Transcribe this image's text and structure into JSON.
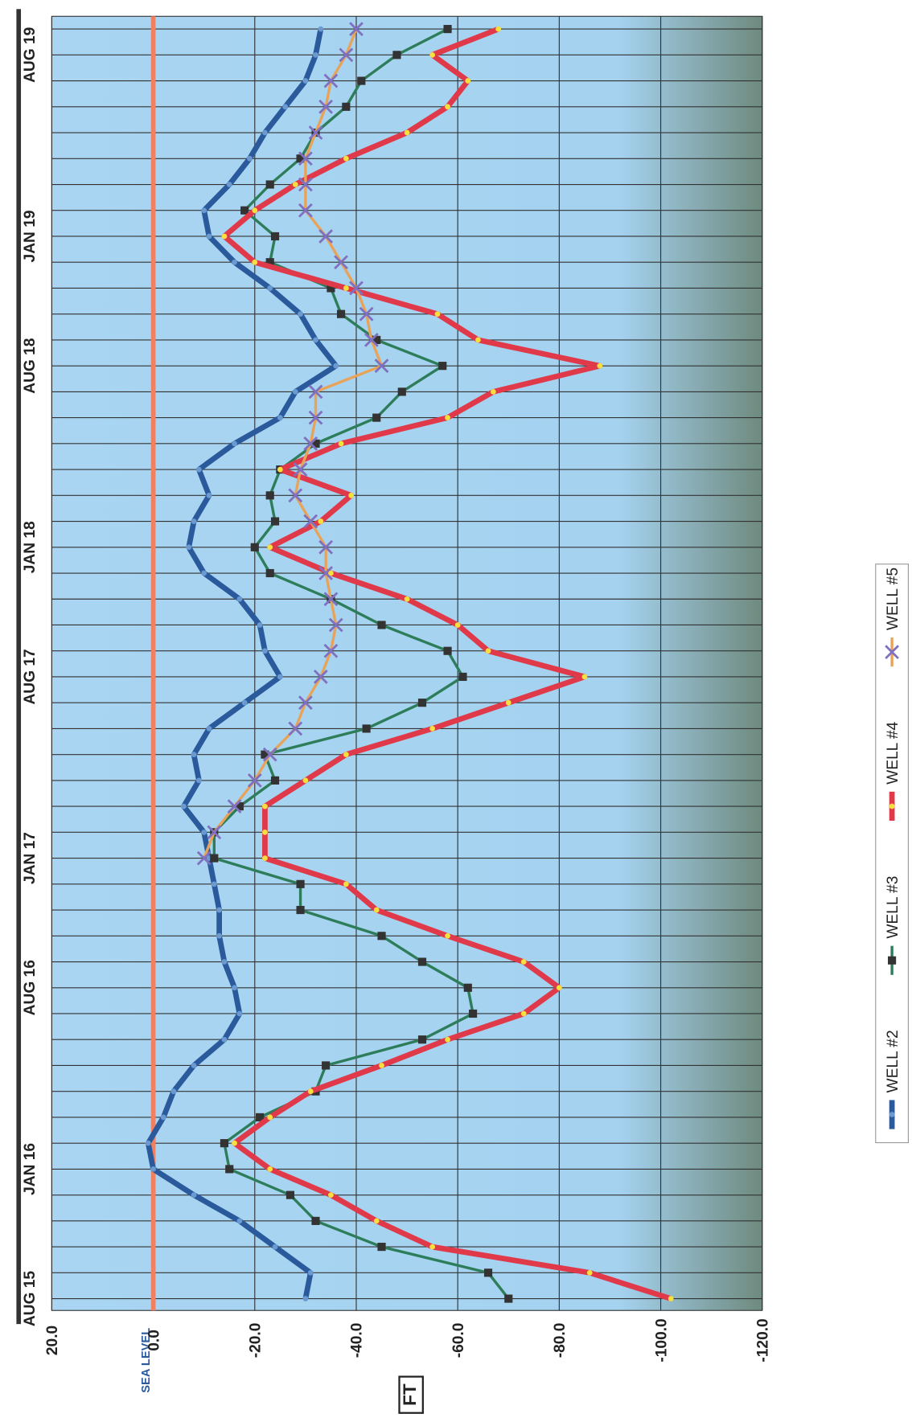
{
  "chart_data": {
    "type": "line",
    "ylabel": "FT",
    "annotations": [
      "SEA LEVEL"
    ],
    "reference_line": {
      "value": 0,
      "color": "#f08060"
    },
    "categories": [
      "AUG 15",
      null,
      null,
      null,
      null,
      "JAN 16",
      null,
      null,
      null,
      null,
      null,
      null,
      "AUG 16",
      null,
      null,
      null,
      null,
      "JAN 17",
      null,
      null,
      null,
      null,
      null,
      null,
      "AUG 17",
      null,
      null,
      null,
      null,
      "JAN 18",
      null,
      null,
      null,
      null,
      null,
      null,
      "AUG 18",
      null,
      null,
      null,
      null,
      "JAN 19",
      null,
      null,
      null,
      null,
      null,
      null,
      "AUG 19",
      null
    ],
    "ylim": [
      20,
      -120
    ],
    "yticks": [
      {
        "value": 20,
        "label": "20.0"
      },
      {
        "value": 0,
        "label": "0.0"
      },
      {
        "value": -20,
        "label": "-20.0"
      },
      {
        "value": -40,
        "label": "-40.0"
      },
      {
        "value": -60,
        "label": "-60.0"
      },
      {
        "value": -80,
        "label": "-80.0"
      },
      {
        "value": -100,
        "label": "-100.0"
      },
      {
        "value": -120,
        "label": "-120.0"
      }
    ],
    "grid": true,
    "legend": "right",
    "series": [
      {
        "name": "WELL #2",
        "color": "#2b5a9c",
        "marker": "dot",
        "marker_color": "#6a9ad0",
        "values": [
          -30,
          -31,
          -24,
          -17,
          -8,
          0,
          1,
          -2,
          -4,
          -8,
          -14,
          -17,
          -16,
          -14,
          -13,
          -13,
          -12,
          -11,
          -10,
          -6,
          -9,
          -8,
          -11,
          -18,
          -25,
          -22,
          -21,
          -17,
          -10,
          -7,
          -8,
          -11,
          -9,
          -16,
          -25,
          -28,
          -36,
          -32,
          -29,
          -23,
          -16,
          -11,
          -10,
          -15,
          -19,
          -22,
          -26,
          -30,
          -32,
          -33
        ]
      },
      {
        "name": "WELL #3",
        "color": "#2e7d5a",
        "marker": "square",
        "marker_color": "#333333",
        "values": [
          -70,
          -66,
          -45,
          -32,
          -27,
          -15,
          -14,
          -21,
          -32,
          -34,
          -53,
          -63,
          -62,
          -53,
          -45,
          -29,
          -29,
          -12,
          -12,
          -17,
          -24,
          -22,
          -42,
          -53,
          -61,
          -58,
          -45,
          -35,
          -23,
          -20,
          -24,
          -23,
          -25,
          -32,
          -44,
          -49,
          -57,
          -44,
          -37,
          -35,
          -23,
          -24,
          -18,
          -23,
          -29,
          -32,
          -38,
          -41,
          -48,
          -58
        ]
      },
      {
        "name": "WELL #4",
        "color": "#e03a4a",
        "marker": "dot",
        "marker_color": "#f5e040",
        "values": [
          -102,
          -86,
          -55,
          -44,
          -35,
          -23,
          -16,
          -23,
          -31,
          -45,
          -58,
          -73,
          -80,
          -73,
          -58,
          -44,
          -38,
          -22,
          -22,
          -22,
          -30,
          -38,
          -55,
          -70,
          -85,
          -66,
          -60,
          -50,
          -35,
          -23,
          -33,
          -39,
          -25,
          -37,
          -58,
          -67,
          -88,
          -64,
          -56,
          -38,
          -20,
          -14,
          -20,
          -28,
          -38,
          -50,
          -58,
          -62,
          -55,
          -68
        ]
      },
      {
        "name": "WELL #5",
        "color": "#e8a35a",
        "marker": "cross",
        "marker_color": "#8070c0",
        "values": [
          null,
          null,
          null,
          null,
          null,
          null,
          null,
          null,
          null,
          null,
          null,
          null,
          null,
          null,
          null,
          null,
          null,
          -10,
          -12,
          -16,
          -20,
          -23,
          -28,
          -30,
          -33,
          -35,
          -36,
          -35,
          -34,
          -34,
          -31,
          -28,
          -29,
          -31,
          -32,
          -32,
          -45,
          -43,
          -42,
          -40,
          -37,
          -34,
          -30,
          -30,
          -30,
          -32,
          -34,
          -35,
          -38,
          -40
        ]
      }
    ]
  }
}
